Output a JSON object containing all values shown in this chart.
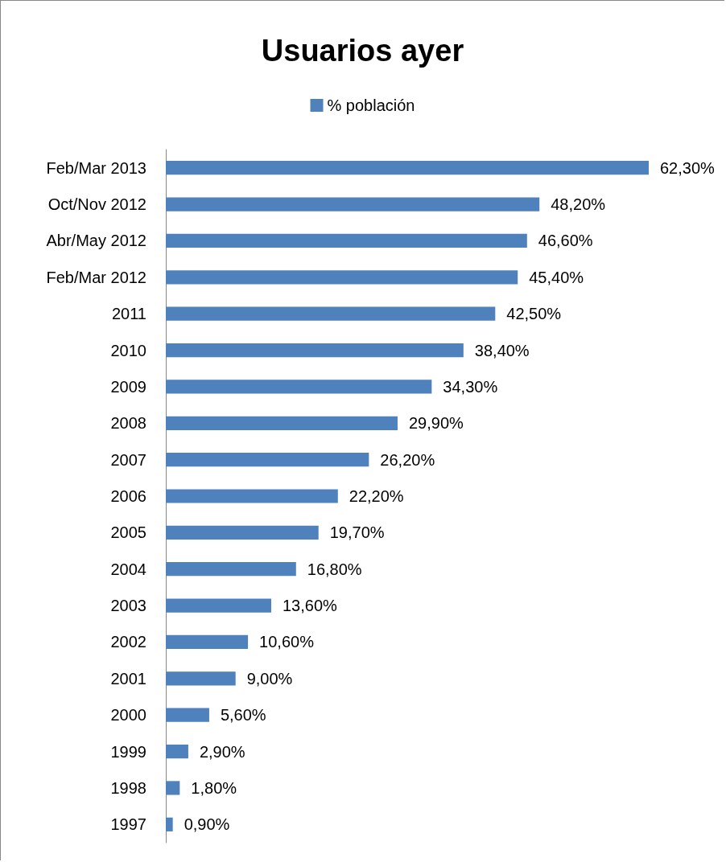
{
  "chart_data": {
    "type": "bar",
    "orientation": "horizontal",
    "title": "Usuarios ayer",
    "legend": "top",
    "categories": [
      "Feb/Mar 2013",
      "Oct/Nov 2012",
      "Abr/May 2012",
      "Feb/Mar 2012",
      "2011",
      "2010",
      "2009",
      "2008",
      "2007",
      "2006",
      "2005",
      "2004",
      "2003",
      "2002",
      "2001",
      "2000",
      "1999",
      "1998",
      "1997"
    ],
    "series": [
      {
        "name": "% población",
        "color": "#4f81bd",
        "values": [
          62.3,
          48.2,
          46.6,
          45.4,
          42.5,
          38.4,
          34.3,
          29.9,
          26.2,
          22.2,
          19.7,
          16.8,
          13.6,
          10.6,
          9.0,
          5.6,
          2.9,
          1.8,
          0.9
        ],
        "value_labels": [
          "62,30%",
          "48,20%",
          "46,60%",
          "45,40%",
          "42,50%",
          "38,40%",
          "34,30%",
          "29,90%",
          "26,20%",
          "22,20%",
          "19,70%",
          "16,80%",
          "13,60%",
          "10,60%",
          "9,00%",
          "5,60%",
          "2,90%",
          "1,80%",
          "0,90%"
        ]
      }
    ]
  }
}
